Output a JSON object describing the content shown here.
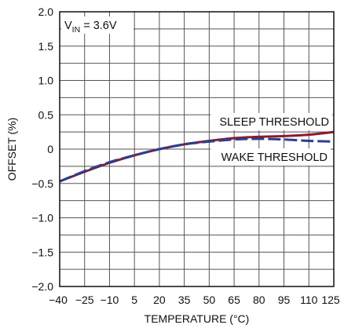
{
  "chart_data": {
    "type": "line",
    "title": "",
    "xlabel": "TEMPERATURE (°C)",
    "ylabel": "OFFSET (%)",
    "xlim": [
      -40,
      125
    ],
    "ylim": [
      -2.0,
      2.0
    ],
    "grid": true,
    "x_ticks": [
      "-40",
      "-25",
      "-10",
      "5",
      "20",
      "35",
      "50",
      "65",
      "80",
      "95",
      "110",
      "125"
    ],
    "x_tick_labels": [
      "−40",
      "−25",
      "−10",
      "5",
      "20",
      "35",
      "50",
      "65",
      "80",
      "95",
      "110",
      "125"
    ],
    "y_ticks": [
      "-2.0",
      "-1.5",
      "-1.0",
      "-0.5",
      "0",
      "0.5",
      "1.0",
      "1.5",
      "2.0"
    ],
    "y_tick_labels": [
      "−2.0",
      "−1.5",
      "−1.0",
      "−0.5",
      "0",
      "0.5",
      "1.0",
      "1.5",
      "2.0"
    ],
    "condition": {
      "main": "V",
      "sub": "IN",
      "rest": " = 3.6V"
    },
    "series": [
      {
        "name": "SLEEP THRESHOLD",
        "color": "#8b1a2f",
        "dash": "solid",
        "x": [
          -40,
          -25,
          -10,
          5,
          20,
          35,
          50,
          65,
          80,
          95,
          110,
          125
        ],
        "y": [
          -0.47,
          -0.33,
          -0.2,
          -0.09,
          0.0,
          0.07,
          0.12,
          0.16,
          0.18,
          0.19,
          0.21,
          0.25
        ]
      },
      {
        "name": "WAKE THRESHOLD",
        "color": "#2a3f8f",
        "dash": "dashed",
        "x": [
          -40,
          -25,
          -10,
          5,
          20,
          35,
          50,
          65,
          80,
          95,
          110,
          125
        ],
        "y": [
          -0.47,
          -0.32,
          -0.19,
          -0.09,
          0.0,
          0.07,
          0.11,
          0.14,
          0.15,
          0.14,
          0.12,
          0.11
        ]
      }
    ]
  }
}
